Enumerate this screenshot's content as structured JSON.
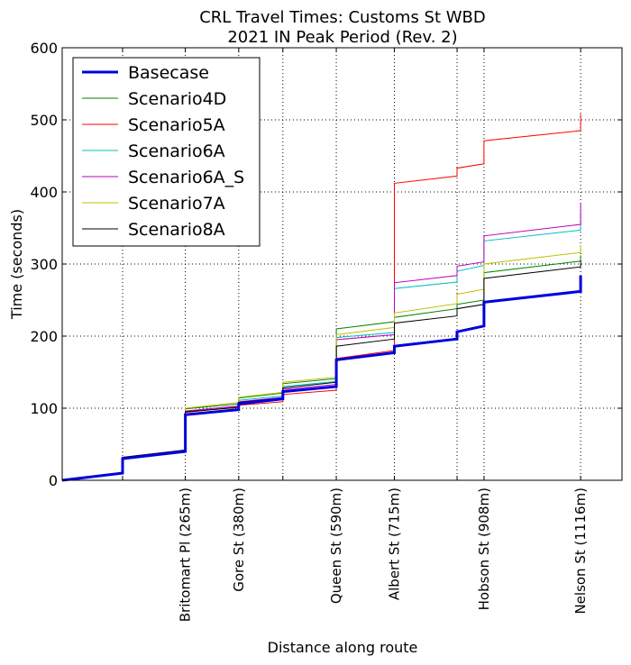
{
  "chart_data": {
    "type": "line",
    "title": "CRL Travel Times: Customs St WBD",
    "subtitle": "2021 IN Peak Period (Rev. 2)",
    "xlabel": "Distance along route",
    "ylabel": "Time (seconds)",
    "xlim": [
      0,
      1205
    ],
    "ylim": [
      0,
      600
    ],
    "yticks": [
      0,
      100,
      200,
      300,
      400,
      500,
      600
    ],
    "xticks": [
      {
        "x": 130,
        "label": ""
      },
      {
        "x": 265,
        "label": "Britomart Pl (265m)"
      },
      {
        "x": 380,
        "label": "Gore St (380m)"
      },
      {
        "x": 475,
        "label": ""
      },
      {
        "x": 590,
        "label": "Queen St (590m)"
      },
      {
        "x": 715,
        "label": "Albert St (715m)"
      },
      {
        "x": 850,
        "label": ""
      },
      {
        "x": 908,
        "label": "Hobson St (908m)"
      },
      {
        "x": 1116,
        "label": "Nelson St (1116m)"
      }
    ],
    "grid": true,
    "legend_position": "top-left",
    "series": [
      {
        "name": "Basecase",
        "color": "#0000dd",
        "width": 3,
        "points": [
          [
            0,
            0
          ],
          [
            130,
            10
          ],
          [
            130,
            30
          ],
          [
            265,
            40
          ],
          [
            265,
            91
          ],
          [
            380,
            98
          ],
          [
            380,
            106
          ],
          [
            475,
            113
          ],
          [
            475,
            123
          ],
          [
            590,
            130
          ],
          [
            590,
            167
          ],
          [
            715,
            177
          ],
          [
            715,
            186
          ],
          [
            850,
            196
          ],
          [
            850,
            206
          ],
          [
            908,
            214
          ],
          [
            908,
            247
          ],
          [
            1116,
            262
          ],
          [
            1116,
            284
          ]
        ]
      },
      {
        "name": "Scenario4D",
        "color": "#008000",
        "width": 1,
        "points": [
          [
            0,
            0
          ],
          [
            130,
            10
          ],
          [
            130,
            30
          ],
          [
            265,
            40
          ],
          [
            265,
            99
          ],
          [
            380,
            106
          ],
          [
            380,
            114
          ],
          [
            475,
            121
          ],
          [
            475,
            134
          ],
          [
            590,
            141
          ],
          [
            590,
            210
          ],
          [
            715,
            220
          ],
          [
            715,
            226
          ],
          [
            850,
            238
          ],
          [
            850,
            244
          ],
          [
            908,
            250
          ],
          [
            908,
            288
          ],
          [
            1116,
            304
          ],
          [
            1116,
            312
          ]
        ]
      },
      {
        "name": "Scenario5A",
        "color": "#ff0000",
        "width": 1,
        "points": [
          [
            0,
            0
          ],
          [
            130,
            10
          ],
          [
            130,
            30
          ],
          [
            265,
            40
          ],
          [
            265,
            94
          ],
          [
            380,
            102
          ],
          [
            380,
            104
          ],
          [
            475,
            109
          ],
          [
            475,
            119
          ],
          [
            590,
            125
          ],
          [
            590,
            169
          ],
          [
            715,
            180
          ],
          [
            715,
            412
          ],
          [
            850,
            422
          ],
          [
            850,
            433
          ],
          [
            908,
            439
          ],
          [
            908,
            471
          ],
          [
            1116,
            485
          ],
          [
            1116,
            508
          ]
        ]
      },
      {
        "name": "Scenario6A",
        "color": "#00bfbf",
        "width": 1,
        "points": [
          [
            0,
            0
          ],
          [
            130,
            10
          ],
          [
            130,
            30
          ],
          [
            265,
            40
          ],
          [
            265,
            96
          ],
          [
            380,
            103
          ],
          [
            380,
            111
          ],
          [
            475,
            117
          ],
          [
            475,
            130
          ],
          [
            590,
            137
          ],
          [
            590,
            198
          ],
          [
            715,
            205
          ],
          [
            715,
            266
          ],
          [
            850,
            275
          ],
          [
            850,
            290
          ],
          [
            908,
            298
          ],
          [
            908,
            332
          ],
          [
            1116,
            347
          ],
          [
            1116,
            370
          ]
        ]
      },
      {
        "name": "Scenario6A_S",
        "color": "#bf00bf",
        "width": 1,
        "points": [
          [
            0,
            0
          ],
          [
            130,
            10
          ],
          [
            130,
            30
          ],
          [
            265,
            40
          ],
          [
            265,
            96
          ],
          [
            380,
            103
          ],
          [
            380,
            109
          ],
          [
            475,
            115
          ],
          [
            475,
            126
          ],
          [
            590,
            133
          ],
          [
            590,
            195
          ],
          [
            715,
            202
          ],
          [
            715,
            274
          ],
          [
            850,
            284
          ],
          [
            850,
            297
          ],
          [
            908,
            303
          ],
          [
            908,
            339
          ],
          [
            1116,
            355
          ],
          [
            1116,
            384
          ]
        ]
      },
      {
        "name": "Scenario7A",
        "color": "#bfbf00",
        "width": 1,
        "points": [
          [
            0,
            0
          ],
          [
            130,
            10
          ],
          [
            130,
            30
          ],
          [
            265,
            40
          ],
          [
            265,
            100
          ],
          [
            380,
            108
          ],
          [
            380,
            115
          ],
          [
            475,
            122
          ],
          [
            475,
            136
          ],
          [
            590,
            143
          ],
          [
            590,
            202
          ],
          [
            715,
            212
          ],
          [
            715,
            232
          ],
          [
            850,
            245
          ],
          [
            850,
            258
          ],
          [
            908,
            265
          ],
          [
            908,
            300
          ],
          [
            1116,
            316
          ],
          [
            1116,
            326
          ]
        ]
      },
      {
        "name": "Scenario8A",
        "color": "#000000",
        "width": 1,
        "points": [
          [
            0,
            0
          ],
          [
            130,
            10
          ],
          [
            130,
            32
          ],
          [
            265,
            42
          ],
          [
            265,
            95
          ],
          [
            380,
            101
          ],
          [
            380,
            108
          ],
          [
            475,
            114
          ],
          [
            475,
            128
          ],
          [
            590,
            136
          ],
          [
            590,
            186
          ],
          [
            715,
            196
          ],
          [
            715,
            218
          ],
          [
            850,
            228
          ],
          [
            850,
            238
          ],
          [
            908,
            244
          ],
          [
            908,
            280
          ],
          [
            1116,
            296
          ],
          [
            1116,
            305
          ]
        ]
      }
    ]
  }
}
